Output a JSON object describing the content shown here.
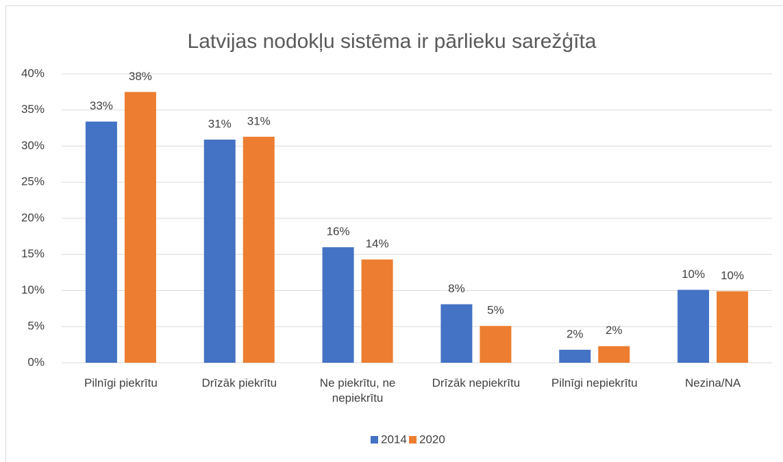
{
  "chart_data": {
    "type": "bar",
    "title": "Latvijas nodokļu sistēma ir pārlieku sarežģīta",
    "categories": [
      "Pilnīgi piekrītu",
      "Drīzāk piekrītu",
      "Ne piekrītu, ne nepiekrītu",
      "Drīzāk nepiekrītu",
      "Pilnīgi nepiekrītu",
      "Nezina/NA"
    ],
    "series": [
      {
        "name": "2014",
        "color": "#4472c4",
        "values": [
          33.4,
          30.9,
          16.0,
          8.1,
          1.8,
          10.1
        ],
        "value_labels": [
          "33%",
          "31%",
          "16%",
          "8%",
          "2%",
          "10%"
        ]
      },
      {
        "name": "2020",
        "color": "#ed7d31",
        "values": [
          37.5,
          31.3,
          14.3,
          5.1,
          2.3,
          9.9
        ],
        "value_labels": [
          "38%",
          "31%",
          "14%",
          "5%",
          "2%",
          "10%"
        ]
      }
    ],
    "ylim": [
      0,
      40
    ],
    "yticks": [
      {
        "value": 0,
        "label": "0%"
      },
      {
        "value": 5,
        "label": "5%"
      },
      {
        "value": 10,
        "label": "10%"
      },
      {
        "value": 15,
        "label": "15%"
      },
      {
        "value": 20,
        "label": "20%"
      },
      {
        "value": 25,
        "label": "25%"
      },
      {
        "value": 30,
        "label": "30%"
      },
      {
        "value": 35,
        "label": "35%"
      },
      {
        "value": 40,
        "label": "40%"
      }
    ],
    "grid": true,
    "legend": "bottom"
  }
}
